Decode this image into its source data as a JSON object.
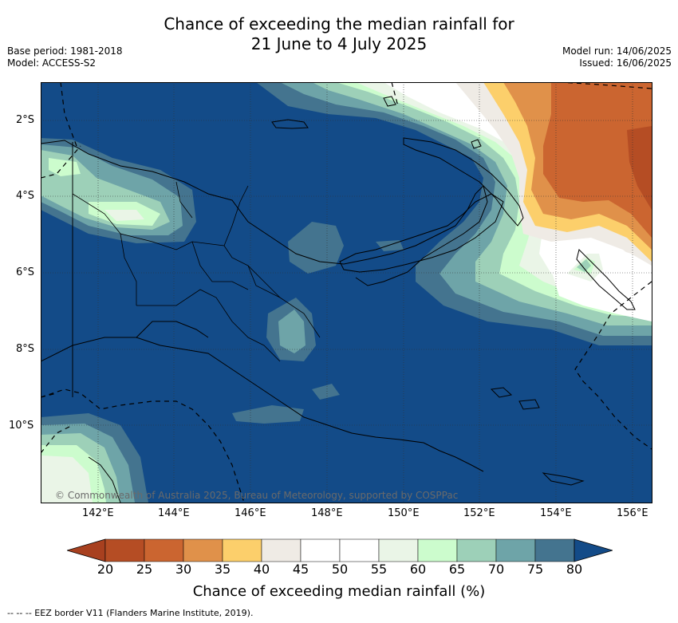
{
  "title_line1": "Chance of exceeding the median rainfall for",
  "title_line2": "21 June to 4 July 2025",
  "base_period": "Base period: 1981-2018",
  "model": "Model: ACCESS-S2",
  "model_run": "Model run: 14/06/2025",
  "issued": "Issued: 16/06/2025",
  "copyright": "© Commonwealth of Australia 2025, Bureau of Meteorology, supported by COSPPac",
  "footer": "--  --  -- EEZ border V11 (Flanders Marine Institute, 2019).",
  "lat_labels": [
    "2°S",
    "4°S",
    "6°S",
    "8°S",
    "10°S"
  ],
  "lon_labels": [
    "142°E",
    "144°E",
    "146°E",
    "148°E",
    "150°E",
    "152°E",
    "154°E",
    "156°E"
  ],
  "colorbar": {
    "title": "Chance of exceeding median rainfall (%)",
    "ticks": [
      "20",
      "25",
      "30",
      "35",
      "40",
      "45",
      "50",
      "55",
      "60",
      "65",
      "70",
      "75",
      "80"
    ],
    "colors": [
      "#a8401f",
      "#b54d24",
      "#cb6530",
      "#e0914a",
      "#fccf6b",
      "#efebe5",
      "#ffffff",
      "#ffffff",
      "#eaf5e7",
      "#ccfccd",
      "#9dd0b8",
      "#6ea4a8",
      "#44748f",
      "#134b88"
    ]
  }
}
